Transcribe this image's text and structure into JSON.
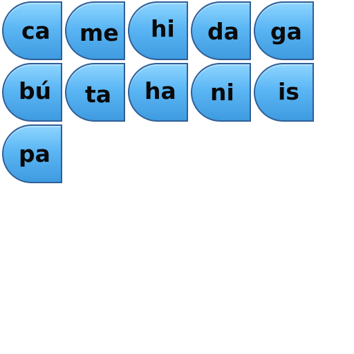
{
  "tiles": [
    {
      "text": "ca"
    },
    {
      "text": "me"
    },
    {
      "text": "hi"
    },
    {
      "text": "da"
    },
    {
      "text": "ga"
    },
    {
      "text": "bú"
    },
    {
      "text": "ta"
    },
    {
      "text": "ha"
    },
    {
      "text": "ni"
    },
    {
      "text": "is"
    },
    {
      "text": "pa"
    }
  ]
}
